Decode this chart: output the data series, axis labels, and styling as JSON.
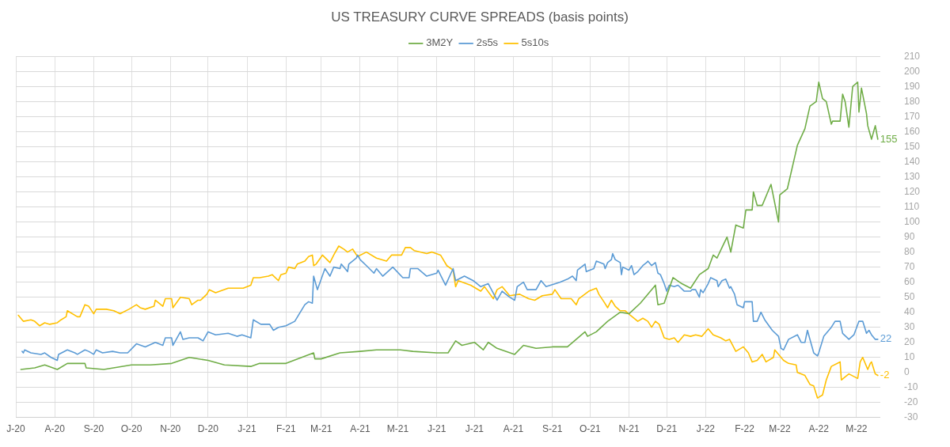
{
  "chart_data": {
    "type": "line",
    "title": "US TREASURY CURVE SPREADS (basis points)",
    "xlim": [
      "2020-07-01",
      "2022-05-20"
    ],
    "xticks": [
      {
        "value": "2020-07-01",
        "label": "J-20"
      },
      {
        "value": "2020-08-01",
        "label": "A-20"
      },
      {
        "value": "2020-09-01",
        "label": "S-20"
      },
      {
        "value": "2020-10-01",
        "label": "O-20"
      },
      {
        "value": "2020-11-01",
        "label": "N-20"
      },
      {
        "value": "2020-12-01",
        "label": "D-20"
      },
      {
        "value": "2021-01-01",
        "label": "J-21"
      },
      {
        "value": "2021-02-01",
        "label": "F-21"
      },
      {
        "value": "2021-03-01",
        "label": "M-21"
      },
      {
        "value": "2021-04-01",
        "label": "A-21"
      },
      {
        "value": "2021-05-01",
        "label": "M-21"
      },
      {
        "value": "2021-06-01",
        "label": "J-21"
      },
      {
        "value": "2021-07-01",
        "label": "J-21"
      },
      {
        "value": "2021-08-01",
        "label": "A-21"
      },
      {
        "value": "2021-09-01",
        "label": "S-21"
      },
      {
        "value": "2021-10-01",
        "label": "O-21"
      },
      {
        "value": "2021-11-01",
        "label": "N-21"
      },
      {
        "value": "2021-12-01",
        "label": "D-21"
      },
      {
        "value": "2022-01-01",
        "label": "J-22"
      },
      {
        "value": "2022-02-01",
        "label": "F-22"
      },
      {
        "value": "2022-03-01",
        "label": "M-22"
      },
      {
        "value": "2022-04-01",
        "label": "A-22"
      },
      {
        "value": "2022-05-01",
        "label": "M-22"
      }
    ],
    "ylim": [
      -30,
      210
    ],
    "yticks": [
      -30,
      -20,
      -10,
      0,
      10,
      20,
      30,
      40,
      50,
      60,
      70,
      80,
      90,
      100,
      110,
      120,
      130,
      140,
      150,
      160,
      170,
      180,
      190,
      200,
      210
    ],
    "grid": true,
    "legend": "top",
    "marker": "none",
    "line_style": "solid",
    "series": [
      {
        "name": "3M2Y",
        "color": "#70ad47",
        "x": [
          "2020-07-05",
          "2020-07-16",
          "2020-07-24",
          "2020-08-03",
          "2020-08-11",
          "2020-08-25",
          "2020-08-26",
          "2020-09-09",
          "2020-10-01",
          "2020-10-16",
          "2020-11-02",
          "2020-11-16",
          "2020-12-01",
          "2020-12-14",
          "2021-01-04",
          "2021-01-11",
          "2021-02-01",
          "2021-02-23",
          "2021-02-24",
          "2021-03-01",
          "2021-03-16",
          "2021-04-01",
          "2021-04-14",
          "2021-05-03",
          "2021-05-13",
          "2021-06-01",
          "2021-06-10",
          "2021-06-16",
          "2021-06-21",
          "2021-07-01",
          "2021-07-08",
          "2021-07-12",
          "2021-07-19",
          "2021-08-02",
          "2021-08-09",
          "2021-08-19",
          "2021-09-01",
          "2021-09-13",
          "2021-09-20",
          "2021-09-27",
          "2021-09-29",
          "2021-10-06",
          "2021-10-15",
          "2021-10-25",
          "2021-11-01",
          "2021-11-10",
          "2021-11-22",
          "2021-11-24",
          "2021-11-29",
          "2021-12-01",
          "2021-12-06",
          "2021-12-13",
          "2021-12-20",
          "2021-12-27",
          "2022-01-03",
          "2022-01-07",
          "2022-01-10",
          "2022-01-14",
          "2022-01-18",
          "2022-01-21",
          "2022-01-25",
          "2022-01-31",
          "2022-02-02",
          "2022-02-07",
          "2022-02-08",
          "2022-02-11",
          "2022-02-15",
          "2022-02-22",
          "2022-02-28",
          "2022-03-01",
          "2022-03-07",
          "2022-03-15",
          "2022-03-21",
          "2022-03-25",
          "2022-03-30",
          "2022-04-01",
          "2022-04-04",
          "2022-04-07",
          "2022-04-11",
          "2022-04-12",
          "2022-04-18",
          "2022-04-20",
          "2022-04-22",
          "2022-04-25",
          "2022-04-28",
          "2022-05-02",
          "2022-05-03",
          "2022-05-05",
          "2022-05-09",
          "2022-05-10",
          "2022-05-13",
          "2022-05-16",
          "2022-05-18"
        ],
        "values": [
          2,
          3,
          5,
          2,
          6,
          6,
          3,
          2,
          5,
          5,
          6,
          10,
          8,
          5,
          4,
          6,
          6,
          13,
          9,
          9,
          13,
          14,
          15,
          15,
          14,
          13,
          13,
          21,
          18,
          20,
          15,
          20,
          16,
          12,
          18,
          16,
          17,
          17,
          22,
          27,
          24,
          27,
          34,
          40,
          39,
          46,
          58,
          45,
          46,
          51,
          63,
          59,
          56,
          65,
          69,
          78,
          76,
          83,
          90,
          80,
          98,
          96,
          108,
          108,
          120,
          111,
          111,
          125,
          100,
          118,
          122,
          151,
          162,
          177,
          180,
          193,
          182,
          180,
          165,
          167,
          167,
          185,
          180,
          163,
          190,
          193,
          173,
          189,
          172,
          164,
          155,
          164,
          155
        ]
      },
      {
        "name": "2s5s",
        "color": "#5b9bd5",
        "x": [
          "2020-07-06",
          "2020-07-07",
          "2020-07-08",
          "2020-07-13",
          "2020-07-21",
          "2020-07-24",
          "2020-07-29",
          "2020-08-03",
          "2020-08-04",
          "2020-08-11",
          "2020-08-17",
          "2020-08-19",
          "2020-08-25",
          "2020-08-28",
          "2020-09-01",
          "2020-09-03",
          "2020-09-08",
          "2020-09-16",
          "2020-09-22",
          "2020-09-28",
          "2020-10-05",
          "2020-10-12",
          "2020-10-20",
          "2020-10-26",
          "2020-10-28",
          "2020-11-02",
          "2020-11-03",
          "2020-11-09",
          "2020-11-11",
          "2020-11-16",
          "2020-11-23",
          "2020-11-27",
          "2020-12-01",
          "2020-12-07",
          "2020-12-17",
          "2020-12-24",
          "2020-12-28",
          "2021-01-04",
          "2021-01-06",
          "2021-01-12",
          "2021-01-19",
          "2021-01-22",
          "2021-01-26",
          "2021-02-01",
          "2021-02-08",
          "2021-02-16",
          "2021-02-19",
          "2021-02-22",
          "2021-02-23",
          "2021-02-26",
          "2021-03-04",
          "2021-03-08",
          "2021-03-11",
          "2021-03-16",
          "2021-03-17",
          "2021-03-22",
          "2021-03-23",
          "2021-03-29",
          "2021-03-30",
          "2021-04-01",
          "2021-04-06",
          "2021-04-12",
          "2021-04-14",
          "2021-04-19",
          "2021-04-27",
          "2021-05-05",
          "2021-05-10",
          "2021-05-11",
          "2021-05-17",
          "2021-05-24",
          "2021-06-01",
          "2021-06-02",
          "2021-06-08",
          "2021-06-14",
          "2021-06-16",
          "2021-06-23",
          "2021-06-30",
          "2021-07-06",
          "2021-07-12",
          "2021-07-19",
          "2021-07-23",
          "2021-07-29",
          "2021-08-02",
          "2021-08-04",
          "2021-08-09",
          "2021-08-12",
          "2021-08-19",
          "2021-08-23",
          "2021-08-27",
          "2021-09-07",
          "2021-09-13",
          "2021-09-17",
          "2021-09-20",
          "2021-09-21",
          "2021-09-27",
          "2021-09-28",
          "2021-10-04",
          "2021-10-06",
          "2021-10-12",
          "2021-10-13",
          "2021-10-15",
          "2021-10-18",
          "2021-10-19",
          "2021-10-21",
          "2021-10-25",
          "2021-10-26",
          "2021-10-27",
          "2021-11-01",
          "2021-11-03",
          "2021-11-05",
          "2021-11-08",
          "2021-11-12",
          "2021-11-15",
          "2021-11-16",
          "2021-11-19",
          "2021-11-22",
          "2021-11-24",
          "2021-11-26",
          "2021-11-29",
          "2021-12-01",
          "2021-12-03",
          "2021-12-07",
          "2021-12-10",
          "2021-12-15",
          "2021-12-20",
          "2021-12-21",
          "2021-12-24",
          "2021-12-27",
          "2021-12-28",
          "2021-12-30",
          "2022-01-03",
          "2022-01-05",
          "2022-01-10",
          "2022-01-11",
          "2022-01-14",
          "2022-01-17",
          "2022-01-20",
          "2022-01-21",
          "2022-01-24",
          "2022-01-26",
          "2022-01-31",
          "2022-02-01",
          "2022-02-07",
          "2022-02-08",
          "2022-02-11",
          "2022-02-14",
          "2022-02-17",
          "2022-02-23",
          "2022-02-28",
          "2022-03-02",
          "2022-03-04",
          "2022-03-08",
          "2022-03-15",
          "2022-03-18",
          "2022-03-21",
          "2022-03-23",
          "2022-03-25",
          "2022-03-28",
          "2022-03-31",
          "2022-04-01",
          "2022-04-05",
          "2022-04-11",
          "2022-04-14",
          "2022-04-18",
          "2022-04-20",
          "2022-04-25",
          "2022-04-29",
          "2022-05-03",
          "2022-05-06",
          "2022-05-09",
          "2022-05-11",
          "2022-05-13",
          "2022-05-16",
          "2022-05-18"
        ],
        "values": [
          14,
          13,
          15,
          13,
          12,
          13,
          10,
          8,
          12,
          15,
          13,
          12,
          15,
          14,
          12,
          15,
          13,
          14,
          13,
          13,
          19,
          17,
          20,
          18,
          23,
          23,
          18,
          27,
          22,
          23,
          23,
          21,
          27,
          25,
          26,
          24,
          25,
          23,
          35,
          32,
          32,
          28,
          30,
          31,
          34,
          45,
          47,
          46,
          64,
          55,
          69,
          64,
          70,
          69,
          72,
          67,
          72,
          76,
          78,
          75,
          71,
          66,
          69,
          64,
          70,
          63,
          63,
          69,
          69,
          64,
          66,
          68,
          58,
          69,
          61,
          64,
          61,
          57,
          59,
          48,
          54,
          50,
          48,
          57,
          60,
          55,
          55,
          61,
          57,
          60,
          62,
          64,
          61,
          68,
          72,
          67,
          69,
          74,
          72,
          69,
          73,
          75,
          79,
          75,
          73,
          65,
          70,
          68,
          71,
          65,
          67,
          71,
          73,
          74,
          71,
          73,
          66,
          65,
          59,
          54,
          58,
          57,
          58,
          54,
          54,
          55,
          55,
          50,
          55,
          53,
          59,
          63,
          61,
          57,
          61,
          62,
          56,
          57,
          52,
          45,
          43,
          47,
          47,
          34,
          34,
          40,
          35,
          28,
          24,
          16,
          15,
          22,
          25,
          20,
          20,
          28,
          22,
          13,
          11,
          13,
          24,
          30,
          34,
          34,
          26,
          22,
          25,
          34,
          34,
          26,
          28,
          25,
          22,
          22
        ]
      },
      {
        "name": "5s10s",
        "color": "#ffc000",
        "x": [
          "2020-07-03",
          "2020-07-06",
          "2020-07-07",
          "2020-07-13",
          "2020-07-16",
          "2020-07-20",
          "2020-07-24",
          "2020-07-28",
          "2020-08-03",
          "2020-08-06",
          "2020-08-10",
          "2020-08-11",
          "2020-08-19",
          "2020-08-21",
          "2020-08-25",
          "2020-08-28",
          "2020-09-01",
          "2020-09-03",
          "2020-09-11",
          "2020-09-17",
          "2020-09-22",
          "2020-09-29",
          "2020-10-05",
          "2020-10-08",
          "2020-10-12",
          "2020-10-19",
          "2020-10-20",
          "2020-10-26",
          "2020-10-28",
          "2020-11-02",
          "2020-11-03",
          "2020-11-09",
          "2020-11-16",
          "2020-11-18",
          "2020-11-23",
          "2020-11-25",
          "2020-11-30",
          "2020-12-02",
          "2020-12-07",
          "2020-12-17",
          "2020-12-24",
          "2020-12-29",
          "2021-01-04",
          "2021-01-06",
          "2021-01-11",
          "2021-01-18",
          "2021-01-21",
          "2021-01-26",
          "2021-01-28",
          "2021-02-01",
          "2021-02-03",
          "2021-02-08",
          "2021-02-10",
          "2021-02-16",
          "2021-02-19",
          "2021-02-22",
          "2021-02-23",
          "2021-02-25",
          "2021-03-02",
          "2021-03-08",
          "2021-03-11",
          "2021-03-15",
          "2021-03-19",
          "2021-03-22",
          "2021-03-26",
          "2021-03-30",
          "2021-04-06",
          "2021-04-14",
          "2021-04-22",
          "2021-04-26",
          "2021-05-04",
          "2021-05-07",
          "2021-05-11",
          "2021-05-14",
          "2021-05-24",
          "2021-05-28",
          "2021-06-04",
          "2021-06-09",
          "2021-06-14",
          "2021-06-16",
          "2021-06-18",
          "2021-06-28",
          "2021-07-06",
          "2021-07-09",
          "2021-07-16",
          "2021-07-19",
          "2021-07-23",
          "2021-07-29",
          "2021-08-06",
          "2021-08-13",
          "2021-08-18",
          "2021-08-24",
          "2021-09-01",
          "2021-09-03",
          "2021-09-08",
          "2021-09-16",
          "2021-09-20",
          "2021-09-22",
          "2021-09-30",
          "2021-10-06",
          "2021-10-08",
          "2021-10-12",
          "2021-10-15",
          "2021-10-18",
          "2021-10-21",
          "2021-10-25",
          "2021-10-29",
          "2021-11-02",
          "2021-11-08",
          "2021-11-12",
          "2021-11-16",
          "2021-11-19",
          "2021-11-22",
          "2021-11-25",
          "2021-11-29",
          "2021-12-03",
          "2021-12-07",
          "2021-12-10",
          "2021-12-15",
          "2021-12-20",
          "2021-12-24",
          "2021-12-29",
          "2022-01-03",
          "2022-01-07",
          "2022-01-13",
          "2022-01-17",
          "2022-01-20",
          "2022-01-25",
          "2022-01-31",
          "2022-02-04",
          "2022-02-07",
          "2022-02-11",
          "2022-02-15",
          "2022-02-18",
          "2022-02-24",
          "2022-02-25",
          "2022-03-04",
          "2022-03-08",
          "2022-03-14",
          "2022-03-15",
          "2022-03-21",
          "2022-03-25",
          "2022-03-28",
          "2022-03-31",
          "2022-04-04",
          "2022-04-07",
          "2022-04-11",
          "2022-04-18",
          "2022-04-19",
          "2022-04-22",
          "2022-04-25",
          "2022-05-02",
          "2022-05-04",
          "2022-05-06",
          "2022-05-10",
          "2022-05-12",
          "2022-05-13",
          "2022-05-16",
          "2022-05-18"
        ],
        "values": [
          38,
          35,
          34,
          35,
          34,
          31,
          33,
          32,
          33,
          35,
          37,
          41,
          37,
          37,
          45,
          44,
          39,
          42,
          42,
          41,
          39,
          42,
          45,
          43,
          42,
          44,
          48,
          44,
          49,
          49,
          43,
          50,
          49,
          45,
          48,
          48,
          52,
          55,
          53,
          56,
          56,
          56,
          58,
          63,
          63,
          64,
          65,
          61,
          65,
          66,
          70,
          69,
          72,
          74,
          77,
          78,
          71,
          72,
          78,
          73,
          78,
          84,
          82,
          80,
          82,
          77,
          80,
          76,
          74,
          78,
          78,
          83,
          83,
          81,
          79,
          80,
          78,
          71,
          68,
          57,
          61,
          58,
          54,
          57,
          49,
          55,
          57,
          51,
          52,
          49,
          48,
          51,
          52,
          55,
          49,
          49,
          45,
          49,
          54,
          56,
          52,
          47,
          43,
          48,
          44,
          41,
          41,
          38,
          34,
          36,
          34,
          30,
          34,
          32,
          23,
          22,
          23,
          20,
          25,
          24,
          25,
          24,
          29,
          25,
          23,
          21,
          22,
          14,
          17,
          13,
          7,
          8,
          12,
          7,
          10,
          15,
          8,
          6,
          5,
          0,
          -2,
          -8,
          -9,
          -17,
          -15,
          -5,
          4,
          7,
          -5,
          -3,
          -1,
          -4,
          7,
          10,
          2,
          6,
          7,
          -1,
          -2
        ]
      }
    ],
    "annotations": [
      {
        "text": "155",
        "x": "2022-05-18",
        "y": 155
      },
      {
        "text": "22",
        "x": "2022-05-18",
        "y": 22
      },
      {
        "text": "-2",
        "x": "2022-05-18",
        "y": -2
      }
    ]
  }
}
